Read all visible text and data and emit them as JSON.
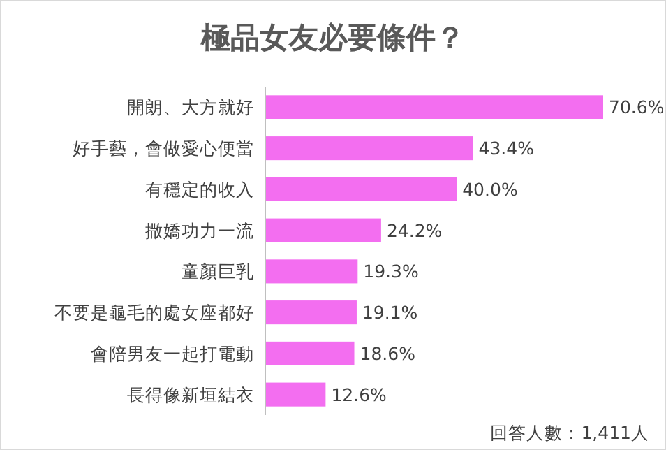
{
  "chart_data": {
    "type": "bar",
    "orientation": "horizontal",
    "title": "極品女友必要條件？",
    "categories": [
      "開朗、大方就好",
      "好手藝，會做愛心便當",
      "有穩定的收入",
      "撒嬌功力一流",
      "童顏巨乳",
      "不要是龜毛的處女座都好",
      "會陪男友一起打電動",
      "長得像新垣結衣"
    ],
    "values": [
      70.6,
      43.4,
      40.0,
      24.2,
      19.3,
      19.1,
      18.6,
      12.6
    ],
    "value_labels": [
      "70.6%",
      "43.4%",
      "40.0%",
      "24.2%",
      "19.3%",
      "19.1%",
      "18.6%",
      "12.6%"
    ],
    "color": "#f36ef0",
    "annotations": [
      "回答人數：1,411人"
    ]
  }
}
